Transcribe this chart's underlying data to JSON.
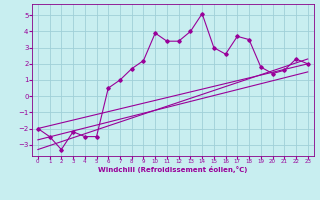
{
  "xlabel": "Windchill (Refroidissement éolien,°C)",
  "background_color": "#c8eef0",
  "grid_color": "#a0d0d8",
  "line_color": "#990099",
  "spine_color": "#880088",
  "xlim": [
    -0.5,
    23.5
  ],
  "ylim": [
    -3.7,
    5.7
  ],
  "xticks": [
    0,
    1,
    2,
    3,
    4,
    5,
    6,
    7,
    8,
    9,
    10,
    11,
    12,
    13,
    14,
    15,
    16,
    17,
    18,
    19,
    20,
    21,
    22,
    23
  ],
  "yticks": [
    -3,
    -2,
    -1,
    0,
    1,
    2,
    3,
    4,
    5
  ],
  "series_x": [
    0,
    1,
    2,
    3,
    4,
    5,
    6,
    7,
    8,
    9,
    10,
    11,
    12,
    13,
    14,
    15,
    16,
    17,
    18,
    19,
    20,
    21,
    22,
    23
  ],
  "series_y": [
    -2.0,
    -2.5,
    -3.3,
    -2.2,
    -2.5,
    -2.5,
    0.5,
    1.0,
    1.7,
    2.2,
    3.9,
    3.4,
    3.4,
    4.0,
    5.1,
    3.0,
    2.6,
    3.7,
    3.5,
    1.8,
    1.4,
    1.6,
    2.3,
    2.0
  ],
  "trend1_x": [
    0,
    23
  ],
  "trend1_y": [
    -2.0,
    2.0
  ],
  "trend2_x": [
    0,
    23
  ],
  "trend2_y": [
    -2.7,
    1.5
  ],
  "trend3_x": [
    0,
    23
  ],
  "trend3_y": [
    -3.3,
    2.3
  ]
}
